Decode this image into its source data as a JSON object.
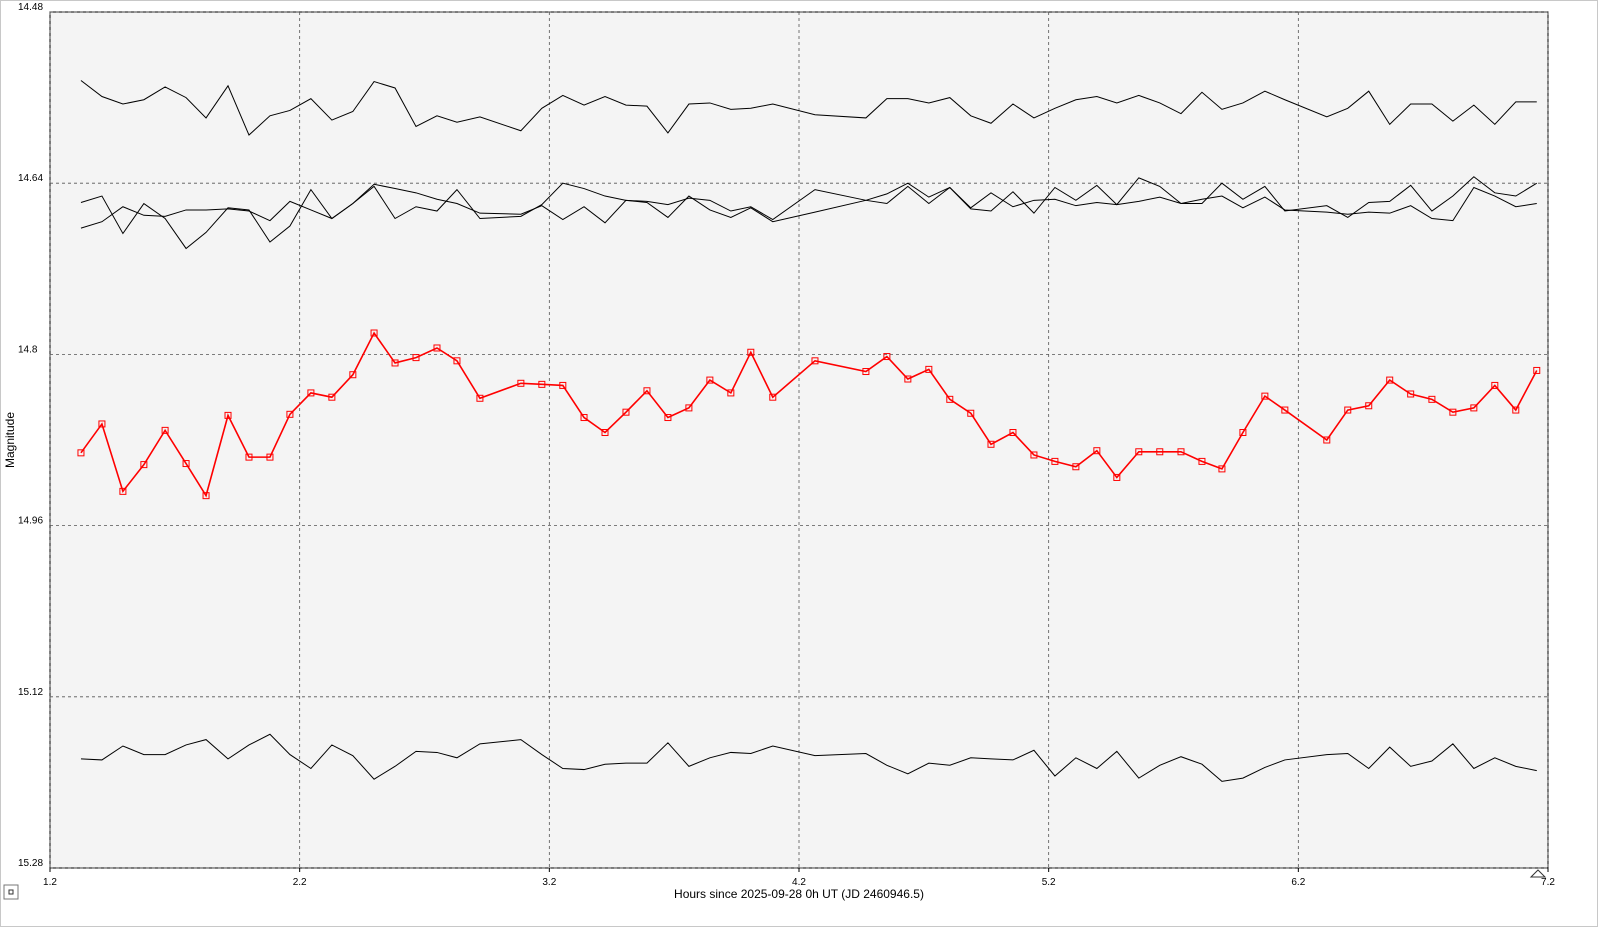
{
  "chart_data": {
    "type": "line",
    "x_label": "Hours since 2025-09-28 0h UT (JD 2460946.5)",
    "y_label": "Magnitude",
    "xlim": [
      1.2,
      7.2
    ],
    "xticks": [
      1.2,
      2.2,
      3.2,
      4.2,
      5.2,
      6.2,
      7.2
    ],
    "ylim": [
      15.28,
      14.48
    ],
    "yticks": [
      14.48,
      14.64,
      14.8,
      14.96,
      15.12,
      15.28
    ],
    "grid": true,
    "x": [
      1.324,
      1.408,
      1.492,
      1.576,
      1.661,
      1.745,
      1.825,
      1.913,
      1.997,
      2.081,
      2.161,
      2.245,
      2.329,
      2.413,
      2.498,
      2.582,
      2.666,
      2.75,
      2.83,
      2.922,
      3.086,
      3.17,
      3.254,
      3.339,
      3.423,
      3.507,
      3.591,
      3.675,
      3.759,
      3.843,
      3.927,
      4.007,
      4.095,
      4.264,
      4.468,
      4.552,
      4.636,
      4.72,
      4.804,
      4.888,
      4.969,
      5.057,
      5.141,
      5.225,
      5.309,
      5.393,
      5.473,
      5.561,
      5.645,
      5.73,
      5.814,
      5.894,
      5.978,
      6.066,
      6.146,
      6.314,
      6.398,
      6.482,
      6.566,
      6.65,
      6.735,
      6.819,
      6.903,
      6.987,
      7.071,
      7.155
    ],
    "series": [
      {
        "color": "#000000",
        "values": [
          14.544,
          14.559,
          14.566,
          14.562,
          14.55,
          14.56,
          14.579,
          14.549,
          14.595,
          14.577,
          14.572,
          14.561,
          14.581,
          14.573,
          14.545,
          14.551,
          14.587,
          14.577,
          14.583,
          14.578,
          14.591,
          14.57,
          14.558,
          14.567,
          14.559,
          14.567,
          14.568,
          14.593,
          14.566,
          14.565,
          14.571,
          14.57,
          14.566,
          14.576,
          14.579,
          14.561,
          14.561,
          14.565,
          14.56,
          14.577,
          14.584,
          14.566,
          14.579,
          14.57,
          14.562,
          14.559,
          14.565,
          14.558,
          14.565,
          14.575,
          14.555,
          14.571,
          14.565,
          14.554,
          14.562,
          14.578,
          14.57,
          14.554,
          14.585,
          14.566,
          14.566,
          14.582,
          14.567,
          14.585,
          14.564,
          14.564
        ]
      },
      {
        "color": "#000000",
        "values": [
          14.658,
          14.652,
          14.687,
          14.659,
          14.673,
          14.701,
          14.686,
          14.663,
          14.665,
          14.695,
          14.68,
          14.646,
          14.673,
          14.659,
          14.643,
          14.673,
          14.662,
          14.666,
          14.646,
          14.673,
          14.671,
          14.66,
          14.64,
          14.645,
          14.652,
          14.656,
          14.657,
          14.66,
          14.654,
          14.656,
          14.666,
          14.662,
          14.674,
          14.646,
          14.656,
          14.659,
          14.643,
          14.659,
          14.644,
          14.664,
          14.666,
          14.648,
          14.668,
          14.644,
          14.656,
          14.642,
          14.66,
          14.635,
          14.643,
          14.659,
          14.659,
          14.64,
          14.655,
          14.643,
          14.666,
          14.661,
          14.672,
          14.658,
          14.657,
          14.642,
          14.666,
          14.652,
          14.634,
          14.649,
          14.652,
          14.64
        ]
      },
      {
        "color": "#000000",
        "values": [
          14.682,
          14.676,
          14.662,
          14.67,
          14.671,
          14.665,
          14.665,
          14.664,
          14.666,
          14.675,
          14.657,
          14.665,
          14.673,
          14.659,
          14.641,
          14.645,
          14.649,
          14.655,
          14.659,
          14.668,
          14.669,
          14.661,
          14.674,
          14.662,
          14.677,
          14.656,
          14.658,
          14.672,
          14.652,
          14.665,
          14.672,
          14.663,
          14.676,
          14.667,
          14.656,
          14.65,
          14.64,
          14.653,
          14.644,
          14.663,
          14.649,
          14.662,
          14.656,
          14.655,
          14.661,
          14.658,
          14.66,
          14.657,
          14.653,
          14.659,
          14.655,
          14.652,
          14.663,
          14.653,
          14.665,
          14.667,
          14.669,
          14.667,
          14.668,
          14.661,
          14.673,
          14.675,
          14.644,
          14.652,
          14.662,
          14.659
        ]
      },
      {
        "color": "#ff0000",
        "marker": "square",
        "values": [
          14.892,
          14.865,
          14.928,
          14.903,
          14.871,
          14.902,
          14.932,
          14.857,
          14.896,
          14.896,
          14.856,
          14.836,
          14.84,
          14.819,
          14.78,
          14.808,
          14.803,
          14.794,
          14.806,
          14.841,
          14.827,
          14.828,
          14.829,
          14.859,
          14.873,
          14.854,
          14.834,
          14.859,
          14.85,
          14.824,
          14.836,
          14.798,
          14.84,
          14.806,
          14.816,
          14.802,
          14.823,
          14.814,
          14.842,
          14.855,
          14.884,
          14.873,
          14.894,
          14.9,
          14.905,
          14.89,
          14.915,
          14.891,
          14.891,
          14.891,
          14.9,
          14.907,
          14.873,
          14.839,
          14.852,
          14.88,
          14.852,
          14.848,
          14.824,
          14.837,
          14.842,
          14.854,
          14.85,
          14.829,
          14.852,
          14.815
        ]
      },
      {
        "color": "#000000",
        "values": [
          15.178,
          15.179,
          15.166,
          15.174,
          15.174,
          15.165,
          15.16,
          15.178,
          15.165,
          15.155,
          15.174,
          15.187,
          15.165,
          15.175,
          15.197,
          15.185,
          15.171,
          15.172,
          15.177,
          15.164,
          15.16,
          15.174,
          15.187,
          15.188,
          15.183,
          15.182,
          15.182,
          15.163,
          15.185,
          15.177,
          15.172,
          15.173,
          15.166,
          15.175,
          15.173,
          15.184,
          15.192,
          15.182,
          15.184,
          15.177,
          15.178,
          15.179,
          15.17,
          15.194,
          15.177,
          15.187,
          15.171,
          15.196,
          15.184,
          15.176,
          15.183,
          15.199,
          15.196,
          15.186,
          15.179,
          15.174,
          15.173,
          15.187,
          15.167,
          15.185,
          15.18,
          15.164,
          15.187,
          15.177,
          15.185,
          15.189
        ]
      }
    ]
  }
}
